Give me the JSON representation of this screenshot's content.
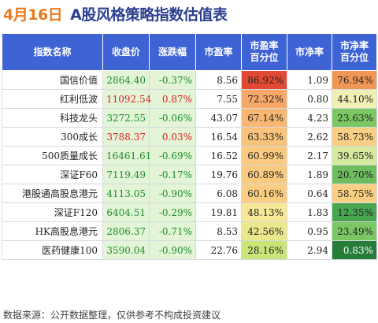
{
  "header": {
    "date": "4月16日",
    "title": "A股风格策略指数估值表"
  },
  "columns": [
    "指数名称",
    "收盘价",
    "涨跌幅",
    "市盈率",
    "市盈率\n百分位",
    "市净率",
    "市净率\n百分位"
  ],
  "rows": [
    {
      "name": "国信价值",
      "close": "2864.40",
      "change": "-0.37%",
      "dir": "neg",
      "pe": "8.56",
      "pe_pct": "86.92%",
      "pe_pct_val": 86.92,
      "pb": "1.09",
      "pb_pct": "76.94%",
      "pb_pct_val": 76.94
    },
    {
      "name": "红利低波",
      "close": "11092.54",
      "change": "0.87%",
      "dir": "pos",
      "pe": "7.55",
      "pe_pct": "72.32%",
      "pe_pct_val": 72.32,
      "pb": "0.80",
      "pb_pct": "44.10%",
      "pb_pct_val": 44.1
    },
    {
      "name": "科技龙头",
      "close": "3272.55",
      "change": "-0.06%",
      "dir": "neg",
      "pe": "43.07",
      "pe_pct": "67.14%",
      "pe_pct_val": 67.14,
      "pb": "4.23",
      "pb_pct": "23.63%",
      "pb_pct_val": 23.63
    },
    {
      "name": "300成长",
      "close": "3788.37",
      "change": "0.03%",
      "dir": "pos",
      "pe": "16.54",
      "pe_pct": "63.33%",
      "pe_pct_val": 63.33,
      "pb": "2.62",
      "pb_pct": "58.73%",
      "pb_pct_val": 58.73
    },
    {
      "name": "500质量成长",
      "close": "16461.61",
      "change": "-0.69%",
      "dir": "neg",
      "pe": "16.52",
      "pe_pct": "60.99%",
      "pe_pct_val": 60.99,
      "pb": "2.17",
      "pb_pct": "39.65%",
      "pb_pct_val": 39.65
    },
    {
      "name": "深证F60",
      "close": "7119.49",
      "change": "-0.17%",
      "dir": "neg",
      "pe": "19.76",
      "pe_pct": "60.89%",
      "pe_pct_val": 60.89,
      "pb": "1.89",
      "pb_pct": "20.70%",
      "pb_pct_val": 20.7
    },
    {
      "name": "港股通高股息港元",
      "close": "4113.05",
      "change": "-0.90%",
      "dir": "neg",
      "pe": "6.08",
      "pe_pct": "60.16%",
      "pe_pct_val": 60.16,
      "pb": "0.64",
      "pb_pct": "58.75%",
      "pb_pct_val": 58.75
    },
    {
      "name": "深证F120",
      "close": "6404.51",
      "change": "-0.29%",
      "dir": "neg",
      "pe": "19.81",
      "pe_pct": "48.13%",
      "pe_pct_val": 48.13,
      "pb": "1.83",
      "pb_pct": "12.35%",
      "pb_pct_val": 12.35
    },
    {
      "name": "HK高股息港元",
      "close": "2806.37",
      "change": "-0.71%",
      "dir": "neg",
      "pe": "8.53",
      "pe_pct": "42.56%",
      "pe_pct_val": 42.56,
      "pb": "0.95",
      "pb_pct": "23.49%",
      "pb_pct_val": 23.49
    },
    {
      "name": "医药健康100",
      "close": "3590.04",
      "change": "-0.90%",
      "dir": "neg",
      "pe": "22.76",
      "pe_pct": "28.16%",
      "pe_pct_val": 28.16,
      "pb": "2.94",
      "pb_pct": "0.83%",
      "pb_pct_val": 0.83
    }
  ],
  "footer": "数据来源：公开数据整理，仅供参考不构成投资建议",
  "colors": {
    "header_bg": "#3d63d4",
    "date": "#e87a1e",
    "title": "#2b3f8f",
    "up": "#e02020",
    "down": "#1a8f2a"
  }
}
